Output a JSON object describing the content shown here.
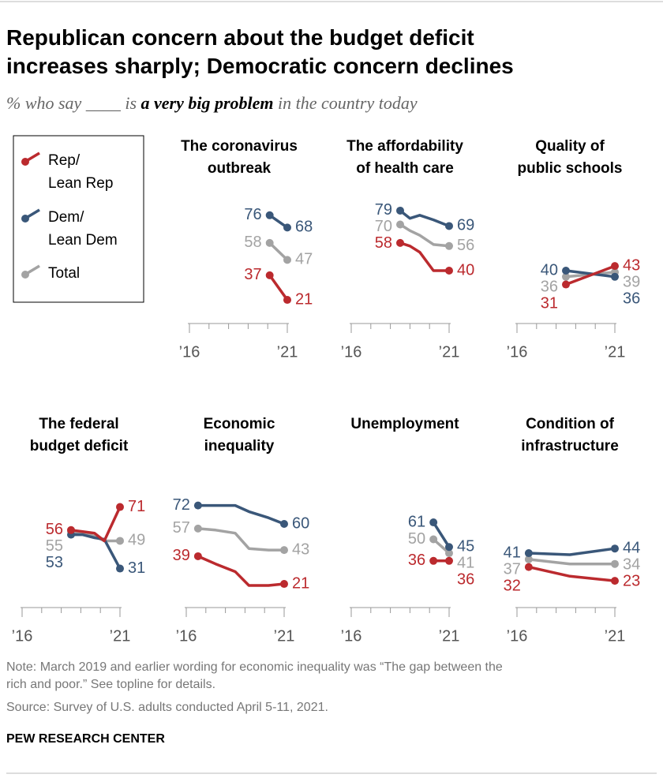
{
  "title": "Republican concern about the budget deficit\nincreases sharply; Democratic concern declines",
  "subtitle": [
    "% who say ____ is ",
    "a very big problem",
    " in the country today"
  ],
  "legend": [
    {
      "name": "Rep/\nLean Rep",
      "color": "#bb2a2e"
    },
    {
      "name": "Dem/\nLean Dem",
      "color": "#3a5779"
    },
    {
      "name": "Total",
      "color": "#a3a3a3"
    }
  ],
  "chart_data": [
    {
      "type": "line",
      "title": "The coronavirus\noutbreak",
      "x": [
        2020.1,
        2021
      ],
      "series": [
        {
          "values": [
            37,
            21
          ]
        },
        {
          "values": [
            76,
            68
          ]
        },
        {
          "values": [
            58,
            47
          ]
        }
      ],
      "xlim": [
        2016,
        2021
      ],
      "xticks": [
        {
          "value": 2016,
          "label": "’16"
        },
        {
          "value": 2021,
          "label": "’21"
        }
      ],
      "xminor": [
        2017,
        2018,
        2019,
        2020
      ],
      "ylim": [
        0,
        80
      ]
    },
    {
      "type": "line",
      "title": "The affordability\nof health care",
      "x": [
        2018.5,
        2019,
        2019.5,
        2020.2,
        2021
      ],
      "series": [
        {
          "values": [
            58,
            56,
            52,
            40,
            40
          ]
        },
        {
          "values": [
            79,
            74,
            76,
            73,
            69
          ]
        },
        {
          "values": [
            70,
            66,
            63,
            57,
            56
          ]
        }
      ],
      "xlim": [
        2016,
        2021
      ],
      "xticks": [
        {
          "value": 2016,
          "label": "’16"
        },
        {
          "value": 2021,
          "label": "’21"
        }
      ],
      "xminor": [
        2017,
        2018,
        2019,
        2020
      ],
      "ylim": [
        0,
        80
      ]
    },
    {
      "type": "line",
      "title": "Quality of\npublic schools",
      "x": [
        2018.5,
        2021
      ],
      "series": [
        {
          "values": [
            31,
            43
          ]
        },
        {
          "values": [
            40,
            36
          ]
        },
        {
          "values": [
            36,
            39
          ]
        }
      ],
      "xlim": [
        2016,
        2021
      ],
      "xticks": [
        {
          "value": 2016,
          "label": "’16"
        },
        {
          "value": 2021,
          "label": "’21"
        }
      ],
      "xminor": [
        2017,
        2018,
        2019,
        2020
      ],
      "ylim": [
        0,
        80
      ]
    },
    {
      "type": "line",
      "title": "The federal\nbudget deficit",
      "x": [
        2018.5,
        2019.1,
        2019.7,
        2020.2,
        2021
      ],
      "series": [
        {
          "values": [
            56,
            55,
            54,
            49,
            71
          ]
        },
        {
          "values": [
            53,
            53,
            51,
            50,
            31
          ]
        },
        {
          "values": [
            55,
            54,
            52,
            49,
            49
          ]
        }
      ],
      "xlim": [
        2016,
        2021
      ],
      "xticks": [
        {
          "value": 2016,
          "label": "’16"
        },
        {
          "value": 2021,
          "label": "’21"
        }
      ],
      "xminor": [
        2017,
        2018,
        2019,
        2020
      ],
      "ylim": [
        0,
        80
      ]
    },
    {
      "type": "line",
      "title": "Economic\ninequality",
      "x": [
        2016.6,
        2017.5,
        2018.5,
        2019.2,
        2020.2,
        2021
      ],
      "series": [
        {
          "values": [
            39,
            34,
            29,
            20,
            20,
            21
          ]
        },
        {
          "values": [
            72,
            72,
            72,
            68,
            64,
            60
          ]
        },
        {
          "values": [
            57,
            56,
            54,
            44,
            43,
            43
          ]
        }
      ],
      "xlim": [
        2016,
        2021
      ],
      "xticks": [
        {
          "value": 2016,
          "label": "’16"
        },
        {
          "value": 2021,
          "label": "’21"
        }
      ],
      "xminor": [
        2017,
        2018,
        2019,
        2020
      ],
      "ylim": [
        0,
        80
      ]
    },
    {
      "type": "line",
      "title": "Unemployment",
      "x": [
        2020.2,
        2021
      ],
      "series": [
        {
          "values": [
            36,
            36
          ]
        },
        {
          "values": [
            61,
            45
          ]
        },
        {
          "values": [
            50,
            41
          ]
        }
      ],
      "xlim": [
        2016,
        2021
      ],
      "xticks": [
        {
          "value": 2016,
          "label": "’16"
        },
        {
          "value": 2021,
          "label": "’21"
        }
      ],
      "xminor": [
        2017,
        2018,
        2019,
        2020
      ],
      "ylim": [
        0,
        80
      ]
    },
    {
      "type": "line",
      "title": "Condition of\ninfrastructure",
      "x": [
        2016.6,
        2018.7,
        2021
      ],
      "series": [
        {
          "values": [
            32,
            26,
            23
          ]
        },
        {
          "values": [
            41,
            40,
            44
          ]
        },
        {
          "values": [
            37,
            34,
            34
          ]
        }
      ],
      "xlim": [
        2016,
        2021
      ],
      "xticks": [
        {
          "value": 2016,
          "label": "’16"
        },
        {
          "value": 2021,
          "label": "’21"
        }
      ],
      "xminor": [
        2017,
        2018,
        2019,
        2020
      ],
      "ylim": [
        0,
        80
      ]
    }
  ],
  "note": "Note: March 2019 and earlier wording for economic inequality was “The gap between the\nrich and poor.” See topline for details.",
  "source": "Source: Survey of U.S. adults conducted April 5-11, 2021.",
  "footer": "PEW RESEARCH CENTER"
}
